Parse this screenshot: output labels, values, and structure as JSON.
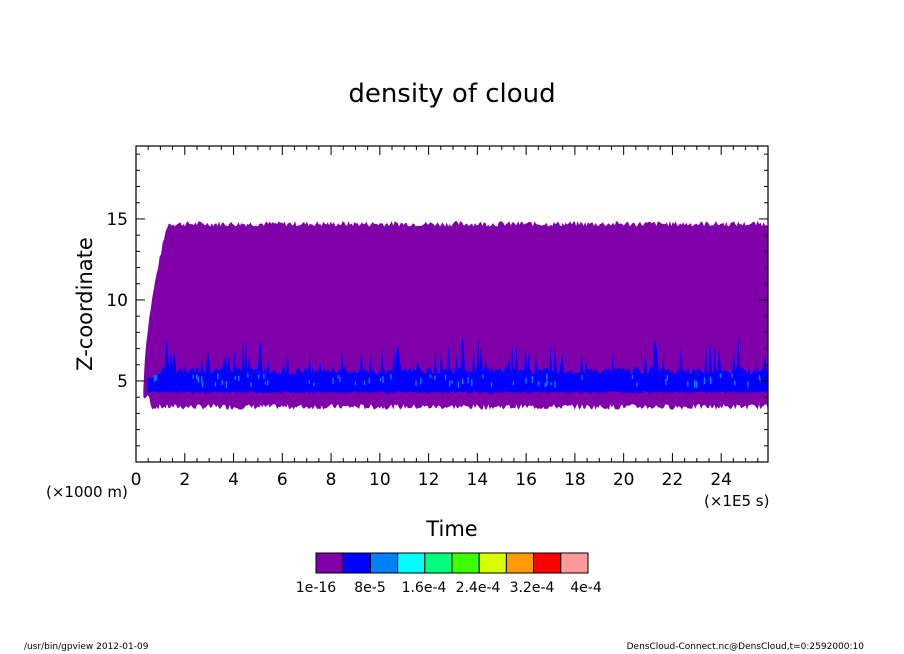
{
  "chart_data": {
    "type": "heatmap",
    "title": "density of cloud",
    "xlabel": "Time",
    "ylabel": "Z-coordinate",
    "x_unit": "(×1E5 s)",
    "y_unit": "(×1000 m)",
    "xlim": [
      0,
      25.92
    ],
    "ylim": [
      0,
      19.5
    ],
    "xticks": [
      "0",
      "2",
      "4",
      "6",
      "8",
      "10",
      "12",
      "14",
      "16",
      "18",
      "20",
      "22",
      "24"
    ],
    "yticks": [
      "5",
      "10",
      "15"
    ],
    "colorbar": {
      "labels": [
        "1e-16",
        "8e-5",
        "1.6e-4",
        "2.4e-4",
        "3.2e-4",
        "4e-4"
      ],
      "colors": [
        "#7f00a8",
        "#0000ff",
        "#0080ff",
        "#00ffff",
        "#00ff7f",
        "#3cff00",
        "#d8ff00",
        "#ff9a00",
        "#ff0000",
        "#ff9a9a"
      ]
    },
    "series": [
      {
        "level": "1e-16",
        "color": "#7f00a8",
        "bottom_z": 3.4,
        "top_z": 14.7
      },
      {
        "level": "8e-5",
        "color": "#0000ff",
        "bottom_z": 4.3,
        "top_z": 6.0
      },
      {
        "level": "1.6e-4",
        "color": "#0080ff",
        "bottom_z": 4.7,
        "top_z": 5.3
      }
    ]
  },
  "footer": {
    "left": "/usr/bin/gpview  2012-01-09",
    "right": "DensCloud-Connect.nc@DensCloud,t=0:2592000:10"
  }
}
